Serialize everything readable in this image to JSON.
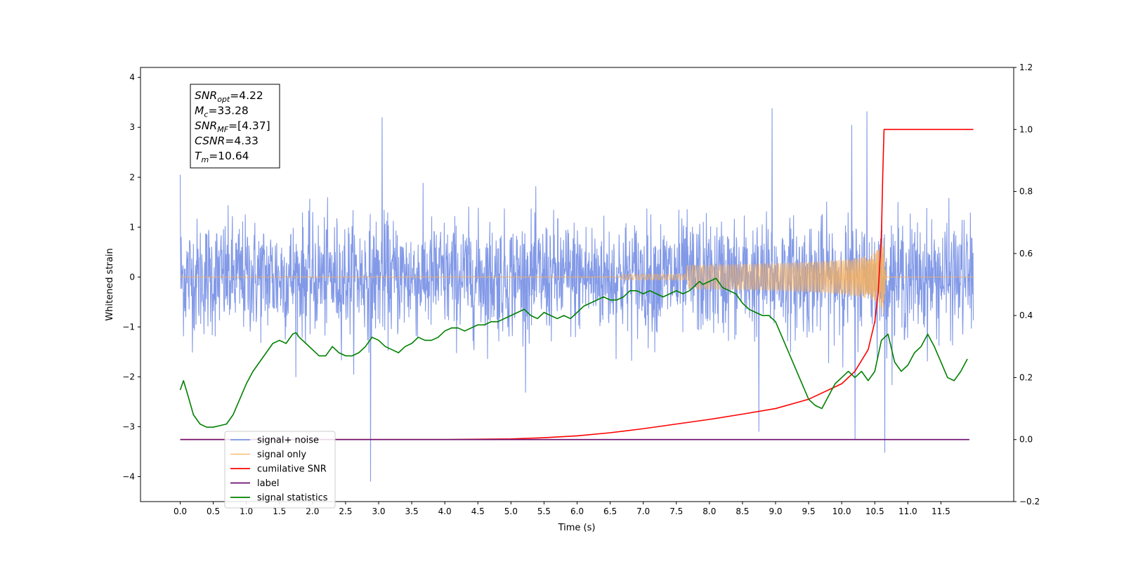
{
  "chart_data": {
    "type": "line",
    "xlabel": "Time (s)",
    "ylabel_left": "Whitened strain",
    "xlim": [
      -0.6,
      12.6
    ],
    "ylim_left": [
      -4.5,
      4.2
    ],
    "ylim_right": [
      -0.2,
      1.2
    ],
    "x_ticks": [
      0.0,
      0.5,
      1.0,
      1.5,
      2.0,
      2.5,
      3.0,
      3.5,
      4.0,
      4.5,
      5.0,
      5.5,
      6.0,
      6.5,
      7.0,
      7.5,
      8.0,
      8.5,
      9.0,
      9.5,
      10.0,
      10.5,
      11.0,
      11.5
    ],
    "x_tick_labels": [
      "0.0",
      "0.5",
      "1.0",
      "1.5",
      "2.0",
      "2.5",
      "3.0",
      "3.5",
      "4.0",
      "4.5",
      "5.0",
      "5.5",
      "6.0",
      "6.5",
      "7.0",
      "7.5",
      "8.0",
      "8.5",
      "9.0",
      "9.5",
      "10.0",
      "10.5",
      "11.0",
      "11.5"
    ],
    "y_left_ticks": [
      -4,
      -3,
      -2,
      -1,
      0,
      1,
      2,
      3,
      4
    ],
    "y_left_tick_labels": [
      "−4",
      "−3",
      "−2",
      "−1",
      "0",
      "1",
      "2",
      "3",
      "4"
    ],
    "y_right_ticks": [
      -0.2,
      0.0,
      0.2,
      0.4,
      0.6,
      0.8,
      1.0,
      1.2
    ],
    "y_right_tick_labels": [
      "−0.2",
      "0.0",
      "0.2",
      "0.4",
      "0.6",
      "0.8",
      "1.0",
      "1.2"
    ],
    "grid": false,
    "legend_position": "lower-left",
    "annotation": [
      {
        "main": "SNR",
        "sub": "opt",
        "value": "=4.22"
      },
      {
        "main": "M",
        "sub": "c",
        "value": "=33.28"
      },
      {
        "main": "SNR",
        "sub": "MF",
        "value": "=[4.37]"
      },
      {
        "main": "CSNR",
        "sub": "",
        "value": "=4.33"
      },
      {
        "main": "T",
        "sub": "m",
        "value": "=10.64"
      }
    ],
    "series": [
      {
        "name": "signal+ noise",
        "axis": "left",
        "color": "#7b93e6",
        "description_range": [
          -2.6,
          3.4
        ],
        "x_range": [
          0.0,
          11.99
        ],
        "noise_sigma": 0.8,
        "peaks": [
          {
            "x": 0.0,
            "y": 2.05
          },
          {
            "x": 2.88,
            "y": -4.1
          },
          {
            "x": 3.05,
            "y": 3.2
          },
          {
            "x": 8.95,
            "y": 3.38
          },
          {
            "x": 10.15,
            "y": 3.05
          },
          {
            "x": 10.2,
            "y": -3.25
          },
          {
            "x": 10.38,
            "y": 3.32
          },
          {
            "x": 10.65,
            "y": -3.52
          },
          {
            "x": 8.75,
            "y": -3.1
          }
        ]
      },
      {
        "name": "signal only",
        "axis": "left",
        "color": "#f5b062",
        "merger_time": 10.64,
        "peak_amplitude": 0.85
      },
      {
        "name": "cumilative SNR",
        "axis": "right",
        "color": "#ff0000",
        "x": [
          0.0,
          4.0,
          5.0,
          5.5,
          6.0,
          6.5,
          7.0,
          7.5,
          8.0,
          8.5,
          9.0,
          9.5,
          10.0,
          10.2,
          10.4,
          10.5,
          10.55,
          10.6,
          10.62,
          10.64,
          11.99
        ],
        "values": [
          0.0,
          0.0,
          0.002,
          0.006,
          0.012,
          0.022,
          0.035,
          0.05,
          0.065,
          0.082,
          0.1,
          0.13,
          0.18,
          0.22,
          0.29,
          0.38,
          0.47,
          0.66,
          0.85,
          1.0,
          1.0
        ]
      },
      {
        "name": "label",
        "axis": "right",
        "color": "#6c0d6c",
        "x": [
          0.0,
          11.93
        ],
        "values": [
          0.0,
          0.0
        ]
      },
      {
        "name": "signal statistics",
        "axis": "right",
        "color": "#008000",
        "x": [
          0.0,
          0.05,
          0.12,
          0.2,
          0.3,
          0.4,
          0.5,
          0.6,
          0.7,
          0.8,
          0.9,
          1.0,
          1.1,
          1.2,
          1.3,
          1.4,
          1.5,
          1.6,
          1.7,
          1.75,
          1.8,
          1.9,
          2.0,
          2.1,
          2.2,
          2.3,
          2.4,
          2.5,
          2.6,
          2.7,
          2.8,
          2.9,
          3.0,
          3.1,
          3.2,
          3.3,
          3.4,
          3.5,
          3.6,
          3.7,
          3.8,
          3.9,
          4.0,
          4.1,
          4.2,
          4.3,
          4.4,
          4.5,
          4.6,
          4.7,
          4.8,
          4.9,
          5.0,
          5.1,
          5.2,
          5.3,
          5.4,
          5.5,
          5.6,
          5.7,
          5.8,
          5.9,
          6.0,
          6.1,
          6.2,
          6.3,
          6.4,
          6.5,
          6.6,
          6.7,
          6.8,
          6.9,
          7.0,
          7.1,
          7.2,
          7.3,
          7.4,
          7.5,
          7.6,
          7.7,
          7.8,
          7.85,
          7.9,
          8.0,
          8.1,
          8.2,
          8.3,
          8.4,
          8.5,
          8.6,
          8.7,
          8.8,
          8.9,
          9.0,
          9.1,
          9.2,
          9.3,
          9.4,
          9.5,
          9.6,
          9.7,
          9.8,
          9.9,
          10.0,
          10.1,
          10.2,
          10.3,
          10.4,
          10.5,
          10.6,
          10.7,
          10.8,
          10.9,
          11.0,
          11.1,
          11.2,
          11.3,
          11.4,
          11.5,
          11.6,
          11.7,
          11.8,
          11.9
        ],
        "values": [
          0.16,
          0.19,
          0.14,
          0.08,
          0.05,
          0.04,
          0.04,
          0.045,
          0.05,
          0.08,
          0.13,
          0.18,
          0.22,
          0.25,
          0.28,
          0.31,
          0.32,
          0.31,
          0.34,
          0.345,
          0.33,
          0.31,
          0.29,
          0.27,
          0.27,
          0.3,
          0.28,
          0.27,
          0.27,
          0.28,
          0.3,
          0.33,
          0.32,
          0.3,
          0.29,
          0.28,
          0.3,
          0.31,
          0.33,
          0.32,
          0.32,
          0.33,
          0.35,
          0.36,
          0.36,
          0.35,
          0.36,
          0.37,
          0.37,
          0.38,
          0.38,
          0.39,
          0.4,
          0.41,
          0.42,
          0.4,
          0.39,
          0.41,
          0.4,
          0.39,
          0.4,
          0.39,
          0.41,
          0.43,
          0.44,
          0.45,
          0.46,
          0.45,
          0.45,
          0.46,
          0.48,
          0.48,
          0.47,
          0.48,
          0.47,
          0.46,
          0.47,
          0.48,
          0.47,
          0.48,
          0.5,
          0.51,
          0.5,
          0.51,
          0.52,
          0.49,
          0.48,
          0.47,
          0.44,
          0.42,
          0.41,
          0.4,
          0.4,
          0.38,
          0.33,
          0.28,
          0.23,
          0.18,
          0.13,
          0.11,
          0.1,
          0.14,
          0.18,
          0.2,
          0.22,
          0.2,
          0.22,
          0.19,
          0.22,
          0.32,
          0.34,
          0.25,
          0.22,
          0.24,
          0.28,
          0.3,
          0.34,
          0.3,
          0.25,
          0.2,
          0.19,
          0.22,
          0.26
        ]
      }
    ]
  }
}
